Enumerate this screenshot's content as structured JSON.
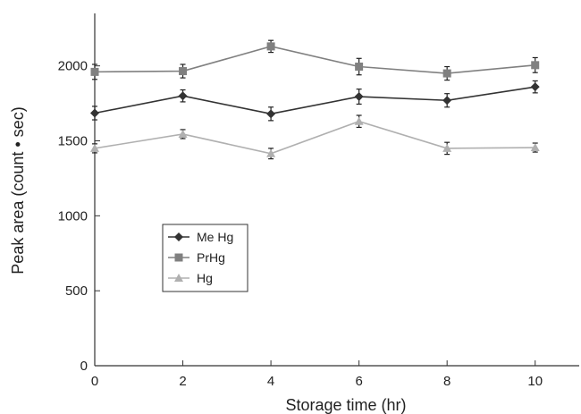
{
  "chart_data": {
    "type": "line",
    "xlabel": "Storage time (hr)",
    "ylabel": "Peak area (count • sec)",
    "x": [
      0,
      2,
      4,
      6,
      8,
      10
    ],
    "xlim": [
      0,
      11
    ],
    "ylim": [
      0,
      2350
    ],
    "xticks": [
      "0",
      "2",
      "4",
      "6",
      "8",
      "10"
    ],
    "yticks": [
      "0",
      "500",
      "1000",
      "1500",
      "2000"
    ],
    "grid": false,
    "legend_position": "center-left",
    "series": [
      {
        "name": "Me Hg",
        "marker": "diamond",
        "color": "#333333",
        "values": [
          1685,
          1800,
          1680,
          1795,
          1770,
          1860
        ],
        "errors": [
          45,
          40,
          45,
          50,
          45,
          40
        ]
      },
      {
        "name": "PrHg",
        "marker": "square",
        "color": "#808080",
        "values": [
          1960,
          1965,
          2130,
          1995,
          1950,
          2005
        ],
        "errors": [
          50,
          45,
          40,
          55,
          45,
          50
        ]
      },
      {
        "name": "Hg",
        "marker": "triangle",
        "color": "#b0b0b0",
        "values": [
          1450,
          1545,
          1415,
          1630,
          1450,
          1455
        ],
        "errors": [
          30,
          30,
          35,
          40,
          40,
          30
        ]
      }
    ]
  }
}
